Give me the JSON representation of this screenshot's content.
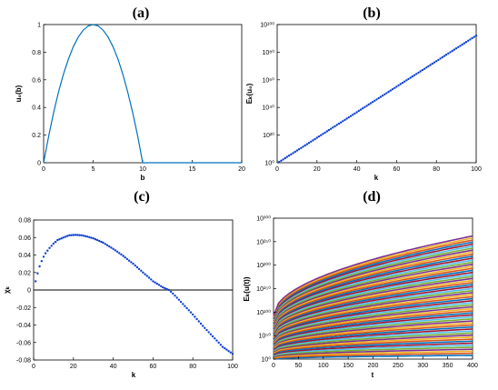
{
  "chart_data": [
    {
      "panel": "(a)",
      "type": "line",
      "xlabel": "b",
      "ylabel": "u₀(b)",
      "xlim": [
        0,
        20
      ],
      "ylim": [
        0,
        1
      ],
      "xticks": [
        "0",
        "5",
        "10",
        "15",
        "20"
      ],
      "yticks": [
        "0",
        "0.2",
        "0.4",
        "0.6",
        "0.8",
        "1"
      ],
      "color": "#0072BD",
      "series": [
        {
          "x": [
            0,
            0.5,
            1,
            1.5,
            2,
            2.5,
            3,
            3.5,
            4,
            4.5,
            5,
            5.5,
            6,
            6.5,
            7,
            7.5,
            8,
            8.5,
            9,
            9.5,
            10,
            12,
            14,
            16,
            18,
            20
          ],
          "y": [
            0,
            0.19,
            0.36,
            0.51,
            0.64,
            0.75,
            0.84,
            0.91,
            0.96,
            0.99,
            1,
            0.99,
            0.96,
            0.91,
            0.84,
            0.75,
            0.64,
            0.51,
            0.36,
            0.19,
            0,
            0,
            0,
            0,
            0,
            0
          ]
        }
      ]
    },
    {
      "panel": "(b)",
      "type": "scatter",
      "xlabel": "k",
      "ylabel": "Eₖ(u₀)",
      "xlim": [
        0,
        100
      ],
      "ylim": [
        0,
        100
      ],
      "scale_y": "log",
      "xticks": [
        "0",
        "20",
        "40",
        "60",
        "80",
        "100"
      ],
      "yticks": [
        "10⁰",
        "10²⁰",
        "10⁴⁰",
        "10⁶⁰",
        "10⁸⁰",
        "10¹⁰⁰"
      ],
      "color": "#0b3fd0",
      "series": [
        {
          "x_start": 1,
          "x_end": 100,
          "x_step": 1,
          "log10_y_start": 0.5,
          "log10_y_end": 92
        }
      ]
    },
    {
      "panel": "(c)",
      "type": "scatter",
      "xlabel": "k",
      "ylabel": "χₖ",
      "xlim": [
        0,
        100
      ],
      "ylim": [
        -0.08,
        0.08
      ],
      "xticks": [
        "0",
        "20",
        "40",
        "60",
        "80",
        "100"
      ],
      "yticks": [
        "-0.08",
        "-0.06",
        "-0.04",
        "-0.02",
        "0",
        "0.02",
        "0.04",
        "0.06",
        "0.08"
      ],
      "color": "#0b3fd0",
      "reference_line": 0,
      "series": [
        {
          "x": [
            1,
            2,
            3,
            4,
            5,
            6,
            8,
            10,
            12,
            15,
            18,
            21,
            24,
            27,
            30,
            35,
            40,
            45,
            50,
            55,
            60,
            65,
            68,
            70,
            75,
            80,
            85,
            90,
            95,
            100
          ],
          "y": [
            0.01,
            0.019,
            0.027,
            0.033,
            0.038,
            0.042,
            0.048,
            0.053,
            0.057,
            0.06,
            0.0625,
            0.063,
            0.0625,
            0.061,
            0.059,
            0.054,
            0.047,
            0.039,
            0.03,
            0.02,
            0.01,
            0.003,
            0.0,
            -0.004,
            -0.016,
            -0.028,
            -0.041,
            -0.053,
            -0.065,
            -0.073
          ]
        }
      ]
    },
    {
      "panel": "(d)",
      "type": "line",
      "xlabel": "t",
      "ylabel": "Eₖ(u(t))",
      "xlim": [
        0,
        400
      ],
      "ylim": [
        0,
        300
      ],
      "scale_y": "log",
      "xticks": [
        "0",
        "50",
        "100",
        "150",
        "200",
        "250",
        "300",
        "350",
        "400"
      ],
      "yticks": [
        "10⁰",
        "10⁵⁰",
        "10¹⁰⁰",
        "10¹⁵⁰",
        "10²⁰⁰",
        "10²⁵⁰",
        "10³⁰⁰"
      ],
      "colors": [
        "#0072BD",
        "#D95319",
        "#EDB120",
        "#7E2F8E",
        "#77AC30",
        "#4DBEEE",
        "#A2142F"
      ],
      "series_family": {
        "count": 60,
        "log10_y_at_t0": [
          0,
          92
        ],
        "log10_y_at_t400": [
          8,
          262
        ],
        "description": ""
      }
    }
  ]
}
